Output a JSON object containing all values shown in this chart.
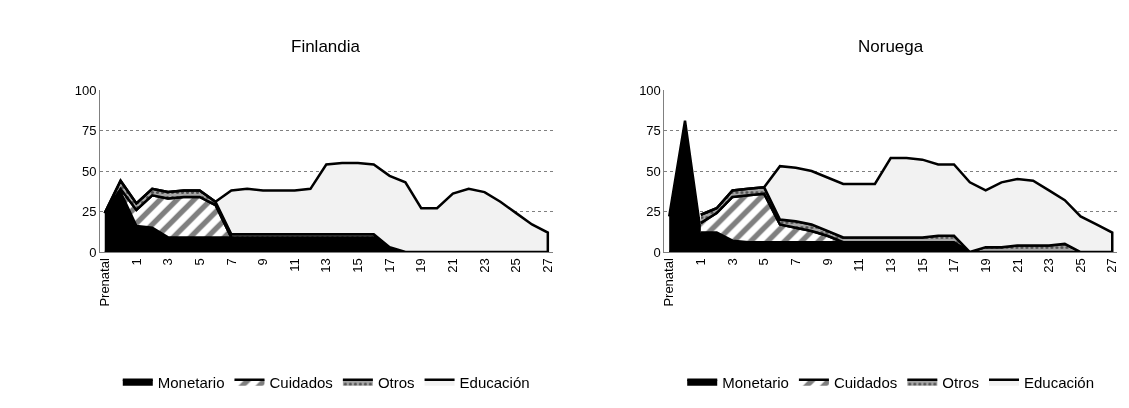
{
  "chart_data": [
    {
      "type": "area",
      "title": "Finlandia",
      "stacked": true,
      "categories": [
        "Prenatal",
        null,
        "1",
        null,
        "3",
        null,
        "5",
        null,
        "7",
        null,
        "9",
        null,
        "11",
        null,
        "13",
        null,
        "15",
        null,
        "17",
        null,
        "19",
        null,
        "21",
        null,
        "23",
        null,
        "25",
        null,
        "27"
      ],
      "ylim": [
        0,
        100
      ],
      "yticks": [
        0,
        25,
        50,
        75,
        100
      ],
      "grid": "y",
      "legend": "bottom",
      "series": [
        {
          "name": "Monetario",
          "color": "#000000",
          "values": [
            24,
            37,
            16,
            15,
            9,
            9,
            9,
            9,
            9,
            9,
            9,
            9,
            9,
            9,
            9,
            9,
            9,
            9,
            2,
            0,
            0,
            0,
            0,
            0,
            0,
            0,
            0,
            0,
            0
          ]
        },
        {
          "name": "Cuidados",
          "color": "#ffffff",
          "values": [
            0,
            2,
            10,
            20,
            24,
            25,
            25,
            20,
            0,
            0,
            0,
            0,
            0,
            0,
            0,
            0,
            0,
            0,
            0,
            0,
            0,
            0,
            0,
            0,
            0,
            0,
            0,
            0,
            0
          ]
        },
        {
          "name": "Otros",
          "color": "#a6a6a6",
          "values": [
            0,
            5,
            4,
            4,
            4,
            4,
            4,
            2,
            2,
            2,
            2,
            2,
            2,
            2,
            2,
            2,
            2,
            2,
            1,
            0,
            0,
            0,
            0,
            0,
            0,
            0,
            0,
            0,
            0
          ]
        },
        {
          "name": "Educación",
          "color": "#f2f2f2",
          "values": [
            0,
            0,
            0,
            0,
            0,
            0,
            0,
            0,
            27,
            28,
            27,
            27,
            27,
            28,
            43,
            44,
            44,
            43,
            44,
            43,
            27,
            27,
            36,
            39,
            37,
            31,
            24,
            17,
            12
          ]
        }
      ]
    },
    {
      "type": "area",
      "title": "Noruega",
      "stacked": true,
      "categories": [
        "Prenatal",
        null,
        "1",
        null,
        "3",
        null,
        "5",
        null,
        "7",
        null,
        "9",
        null,
        "11",
        null,
        "13",
        null,
        "15",
        null,
        "17",
        null,
        "19",
        null,
        "21",
        null,
        "23",
        null,
        "25",
        null,
        "27"
      ],
      "ylim": [
        0,
        100
      ],
      "yticks": [
        0,
        25,
        50,
        75,
        100
      ],
      "grid": "y",
      "legend": "bottom",
      "series": [
        {
          "name": "Monetario",
          "color": "#000000",
          "values": [
            22,
            81,
            12,
            12,
            7,
            6,
            6,
            6,
            6,
            6,
            6,
            6,
            6,
            6,
            6,
            6,
            6,
            6,
            6,
            0,
            0,
            0,
            0,
            0,
            0,
            0,
            0,
            0,
            0
          ]
        },
        {
          "name": "Cuidados",
          "color": "#ffffff",
          "values": [
            null,
            null,
            6,
            12,
            27,
            29,
            30,
            11,
            9,
            7,
            4,
            0,
            0,
            0,
            0,
            0,
            0,
            0,
            0,
            0,
            0,
            0,
            0,
            0,
            0,
            0,
            0,
            0,
            0
          ]
        },
        {
          "name": "Otros",
          "color": "#a6a6a6",
          "values": [
            null,
            null,
            5,
            3,
            4,
            4,
            4,
            3,
            4,
            4,
            3,
            3,
            3,
            3,
            3,
            3,
            3,
            4,
            4,
            0,
            3,
            3,
            4,
            4,
            4,
            5,
            0,
            0,
            0
          ]
        },
        {
          "name": "Educación",
          "color": "#f2f2f2",
          "values": [
            null,
            null,
            0,
            0,
            0,
            0,
            0,
            33,
            33,
            33,
            33,
            33,
            33,
            33,
            49,
            49,
            48,
            44,
            44,
            43,
            35,
            40,
            41,
            40,
            34,
            27,
            22,
            17,
            12
          ]
        }
      ]
    }
  ]
}
